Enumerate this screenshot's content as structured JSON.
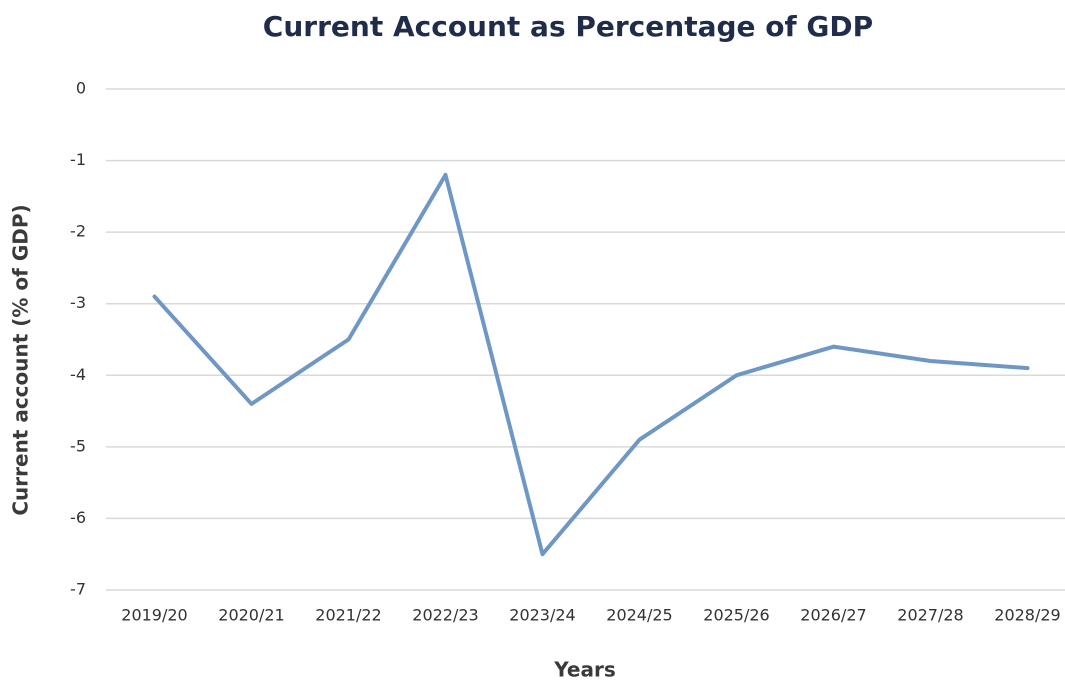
{
  "chart_data": {
    "type": "line",
    "title": "Current Account as Percentage of GDP",
    "x_label": "Years",
    "y_label": "Current account (% of GDP)",
    "categories": [
      "2019/20",
      "2020/21",
      "2021/22",
      "2022/23",
      "2023/24",
      "2024/25",
      "2025/26",
      "2026/27",
      "2027/28",
      "2028/29"
    ],
    "series": [
      {
        "name": "Current account",
        "color": "#6f97c6",
        "values": [
          -2.9,
          -4.4,
          -3.5,
          -1.2,
          -6.5,
          -4.9,
          -4.0,
          -3.6,
          -3.8,
          -3.9
        ]
      }
    ],
    "ylim": [
      -7,
      0
    ],
    "yticks": [
      0,
      -1,
      -2,
      -3,
      -4,
      -5,
      -6,
      -7
    ],
    "grid": true
  }
}
